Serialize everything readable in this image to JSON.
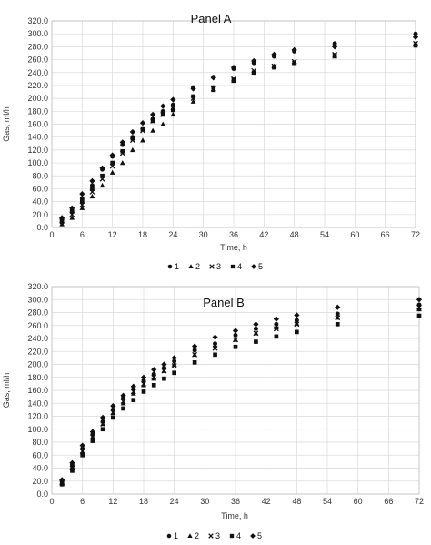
{
  "chart_data": [
    {
      "type": "scatter",
      "title": "Panel A",
      "xlabel": "Time, h",
      "ylabel": "Gas, ml/h",
      "xlim": [
        0,
        72
      ],
      "ylim": [
        0,
        320
      ],
      "xticks": [
        "0",
        "6",
        "12",
        "18",
        "24",
        "30",
        "36",
        "42",
        "48",
        "54",
        "60",
        "66",
        "72"
      ],
      "yticks": [
        "0.0",
        "20.0",
        "40.0",
        "60.0",
        "80.0",
        "100.0",
        "120.0",
        "140.0",
        "160.0",
        "180.0",
        "200.0",
        "220.0",
        "240.0",
        "260.0",
        "280.0",
        "300.0",
        "320.0"
      ],
      "grid": true,
      "legend_position": "bottom",
      "x": [
        2,
        4,
        6,
        8,
        10,
        12,
        14,
        16,
        18,
        20,
        22,
        24,
        28,
        32,
        36,
        40,
        44,
        48,
        56,
        72
      ],
      "series": [
        {
          "name": "1",
          "marker": "circle",
          "values": [
            8,
            24,
            45,
            65,
            90,
            110,
            128,
            140,
            152,
            168,
            180,
            190,
            217,
            233,
            246,
            255,
            265,
            273,
            285,
            300
          ]
        },
        {
          "name": "2",
          "marker": "triangle",
          "values": [
            5,
            15,
            30,
            48,
            65,
            85,
            100,
            120,
            135,
            150,
            160,
            175,
            195,
            213,
            227,
            240,
            250,
            255,
            265,
            284
          ]
        },
        {
          "name": "3",
          "marker": "x",
          "values": [
            10,
            20,
            35,
            55,
            75,
            95,
            115,
            135,
            150,
            165,
            175,
            185,
            200,
            215,
            230,
            243,
            250,
            257,
            268,
            285
          ]
        },
        {
          "name": "4",
          "marker": "square",
          "values": [
            12,
            25,
            40,
            60,
            80,
            100,
            118,
            138,
            152,
            165,
            175,
            182,
            203,
            217,
            229,
            240,
            248,
            255,
            267,
            282
          ]
        },
        {
          "name": "5",
          "marker": "diamond",
          "values": [
            15,
            30,
            52,
            72,
            92,
            112,
            132,
            148,
            162,
            175,
            188,
            198,
            215,
            232,
            248,
            258,
            268,
            275,
            280,
            295
          ]
        }
      ]
    },
    {
      "type": "scatter",
      "title": "Panel B",
      "xlabel": "Time, h",
      "ylabel": "Gas, ml/h",
      "xlim": [
        0,
        72
      ],
      "ylim": [
        0,
        320
      ],
      "xticks": [
        "0",
        "6",
        "12",
        "18",
        "24",
        "30",
        "36",
        "42",
        "48",
        "54",
        "60",
        "66",
        "72"
      ],
      "yticks": [
        "0.0",
        "20.0",
        "40.0",
        "60.0",
        "80.0",
        "100.0",
        "120.0",
        "140.0",
        "160.0",
        "180.0",
        "200.0",
        "220.0",
        "240.0",
        "260.0",
        "280.0",
        "300.0",
        "320.0"
      ],
      "grid": true,
      "legend_position": "bottom",
      "x": [
        2,
        4,
        6,
        8,
        10,
        12,
        14,
        16,
        18,
        20,
        22,
        24,
        28,
        32,
        36,
        40,
        44,
        48,
        56,
        72
      ],
      "series": [
        {
          "name": "1",
          "marker": "circle",
          "values": [
            20,
            45,
            70,
            92,
            112,
            130,
            148,
            162,
            175,
            185,
            195,
            205,
            222,
            232,
            245,
            255,
            262,
            268,
            278,
            292
          ]
        },
        {
          "name": "2",
          "marker": "triangle",
          "values": [
            18,
            42,
            65,
            88,
            108,
            125,
            140,
            155,
            168,
            178,
            190,
            200,
            215,
            228,
            238,
            248,
            257,
            263,
            272,
            285
          ]
        },
        {
          "name": "3",
          "marker": "x",
          "values": [
            17,
            40,
            66,
            88,
            108,
            126,
            143,
            158,
            170,
            180,
            190,
            198,
            215,
            225,
            238,
            248,
            255,
            262,
            272,
            288
          ]
        },
        {
          "name": "4",
          "marker": "square",
          "values": [
            15,
            36,
            60,
            82,
            100,
            118,
            132,
            145,
            158,
            168,
            178,
            187,
            203,
            215,
            227,
            235,
            243,
            250,
            262,
            275
          ]
        },
        {
          "name": "5",
          "marker": "diamond",
          "values": [
            22,
            48,
            75,
            96,
            118,
            136,
            152,
            166,
            180,
            192,
            200,
            210,
            228,
            242,
            252,
            262,
            270,
            276,
            288,
            300
          ]
        }
      ]
    }
  ]
}
